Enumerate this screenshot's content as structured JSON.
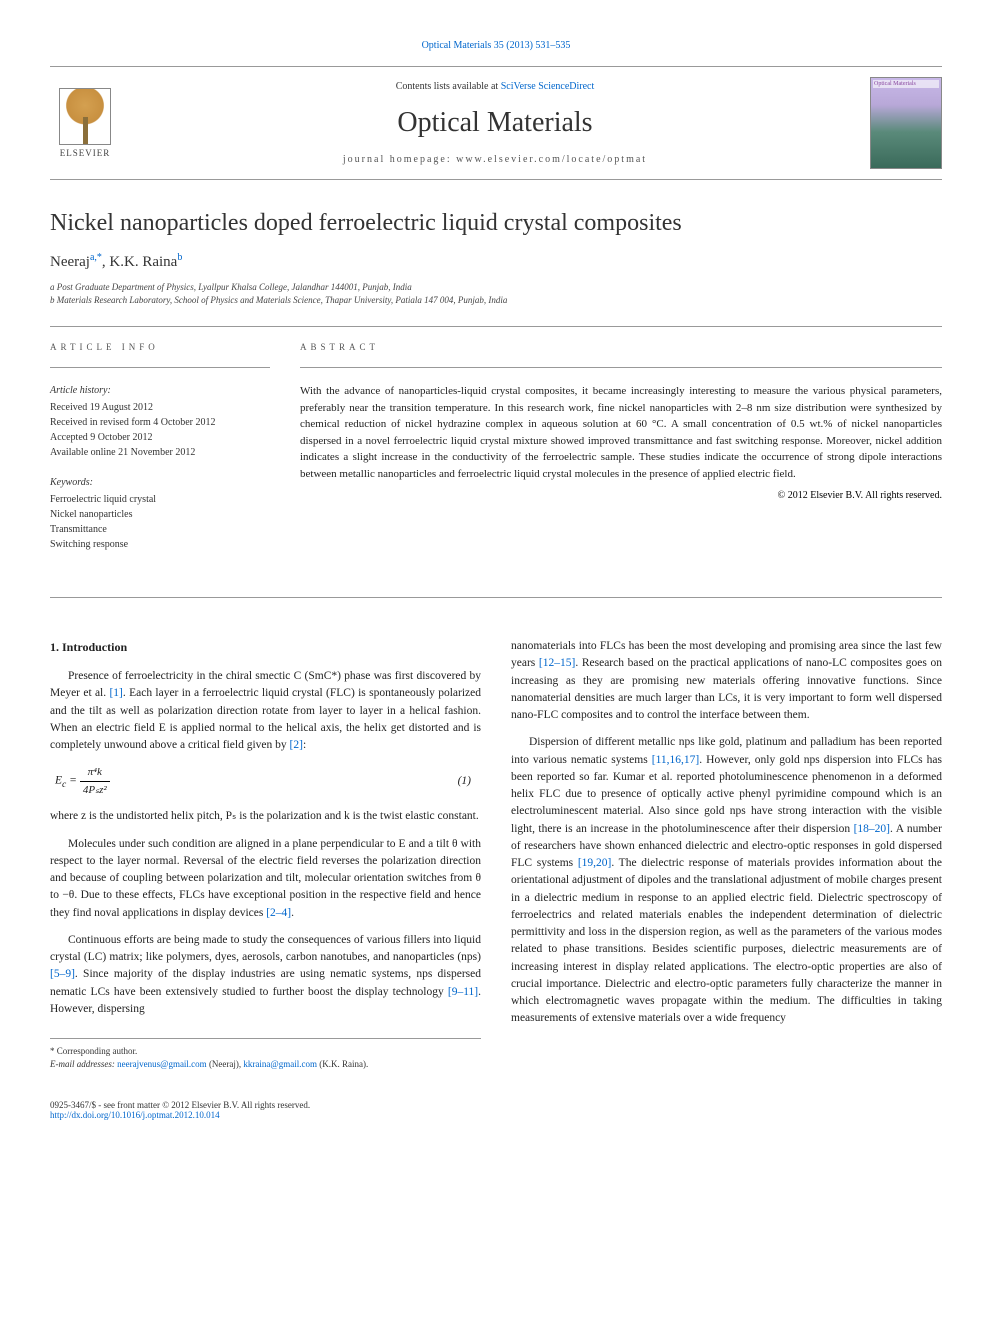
{
  "header": {
    "citation": "Optical Materials 35 (2013) 531–535",
    "contents_prefix": "Contents lists available at ",
    "contents_link": "SciVerse ScienceDirect",
    "journal_title": "Optical Materials",
    "homepage_label": "journal homepage: www.elsevier.com/locate/optmat",
    "publisher": "ELSEVIER",
    "cover_text": "Optical Materials"
  },
  "article": {
    "title": "Nickel nanoparticles doped ferroelectric liquid crystal composites",
    "authors_html": "Neeraj <sup>a,*</sup>, K.K. Raina <sup>b</sup>",
    "author1": "Neeraj",
    "author1_sup": "a,*",
    "author2": "K.K. Raina",
    "author2_sup": "b",
    "affil_a": "a Post Graduate Department of Physics, Lyallpur Khalsa College, Jalandhar 144001, Punjab, India",
    "affil_b": "b Materials Research Laboratory, School of Physics and Materials Science, Thapar University, Patiala 147 004, Punjab, India"
  },
  "meta": {
    "info_label": "ARTICLE INFO",
    "abstract_label": "ABSTRACT",
    "history_title": "Article history:",
    "received": "Received 19 August 2012",
    "revised": "Received in revised form 4 October 2012",
    "accepted": "Accepted 9 October 2012",
    "online": "Available online 21 November 2012",
    "keywords_title": "Keywords:",
    "kw1": "Ferroelectric liquid crystal",
    "kw2": "Nickel nanoparticles",
    "kw3": "Transmittance",
    "kw4": "Switching response"
  },
  "abstract": {
    "text": "With the advance of nanoparticles-liquid crystal composites, it became increasingly interesting to measure the various physical parameters, preferably near the transition temperature. In this research work, fine nickel nanoparticles with 2–8 nm size distribution were synthesized by chemical reduction of nickel hydrazine complex in aqueous solution at 60 °C. A small concentration of 0.5 wt.% of nickel nanoparticles dispersed in a novel ferroelectric liquid crystal mixture showed improved transmittance and fast switching response. Moreover, nickel addition indicates a slight increase in the conductivity of the ferroelectric sample. These studies indicate the occurrence of strong dipole interactions between metallic nanoparticles and ferroelectric liquid crystal molecules in the presence of applied electric field.",
    "copyright": "© 2012 Elsevier B.V. All rights reserved."
  },
  "body": {
    "intro_heading": "1. Introduction",
    "p1a": "Presence of ferroelectricity in the chiral smectic C (SmC*) phase was first discovered by Meyer et al. ",
    "p1_ref1": "[1]",
    "p1b": ". Each layer in a ferroelectric liquid crystal (FLC) is spontaneously polarized and the tilt as well as polarization direction rotate from layer to layer in a helical fashion. When an electric field E is applied normal to the helical axis, the helix get distorted and is completely unwound above a critical field given by ",
    "p1_ref2": "[2]",
    "p1c": ":",
    "eq1_lhs": "E",
    "eq1_sub": "c",
    "eq1_num": "π⁴k",
    "eq1_den": "4Pₛz²",
    "eq1_label": "(1)",
    "p2": "where z is the undistorted helix pitch, Pₛ is the polarization and k is the twist elastic constant.",
    "p3a": "Molecules under such condition are aligned in a plane perpendicular to E and a tilt θ with respect to the layer normal. Reversal of the electric field reverses the polarization direction and because of coupling between polarization and tilt, molecular orientation switches from θ to −θ. Due to these effects, FLCs have exceptional position in the respective field and hence they find noval applications in display devices ",
    "p3_ref": "[2–4]",
    "p3b": ".",
    "p4a": "Continuous efforts are being made to study the consequences of various fillers into liquid crystal (LC) matrix; like polymers, dyes, aerosols, carbon nanotubes, and nanoparticles (nps) ",
    "p4_ref1": "[5–9]",
    "p4b": ". Since majority of the display industries are using nematic systems, nps dispersed nematic LCs have been extensively studied to further boost the display technology ",
    "p4_ref2": "[9–11]",
    "p4c": ". However, dispersing",
    "p5a": "nanomaterials into FLCs has been the most developing and promising area since the last few years ",
    "p5_ref": "[12–15]",
    "p5b": ". Research based on the practical applications of nano-LC composites goes on increasing as they are promising new materials offering innovative functions. Since nanomaterial densities are much larger than LCs, it is very important to form well dispersed nano-FLC composites and to control the interface between them.",
    "p6a": "Dispersion of different metallic nps like gold, platinum and palladium has been reported into various nematic systems ",
    "p6_ref1": "[11,16,17]",
    "p6b": ". However, only gold nps dispersion into FLCs has been reported so far. Kumar et al. reported photoluminescence phenomenon in a deformed helix FLC due to presence of optically active phenyl pyrimidine compound which is an electroluminescent material. Also since gold nps have strong interaction with the visible light, there is an increase in the photoluminescence after their dispersion ",
    "p6_ref2": "[18–20]",
    "p6c": ". A number of researchers have shown enhanced dielectric and electro-optic responses in gold dispersed FLC systems ",
    "p6_ref3": "[19,20]",
    "p6d": ". The dielectric response of materials provides information about the orientational adjustment of dipoles and the translational adjustment of mobile charges present in a dielectric medium in response to an applied electric field. Dielectric spectroscopy of ferroelectrics and related materials enables the independent determination of dielectric permittivity and loss in the dispersion region, as well as the parameters of the various modes related to phase transitions. Besides scientific purposes, dielectric measurements are of increasing interest in display related applications. The electro-optic properties are also of crucial importance. Dielectric and electro-optic parameters fully characterize the manner in which electromagnetic waves propagate within the medium. The difficulties in taking measurements of extensive materials over a wide frequency"
  },
  "footnotes": {
    "corr": "* Corresponding author.",
    "email_label": "E-mail addresses: ",
    "email1": "neerajvenus@gmail.com",
    "email1_who": " (Neeraj), ",
    "email2": "kkraina@gmail.com",
    "email2_who": " (K.K. Raina)."
  },
  "footer": {
    "issn": "0925-3467/$ - see front matter © 2012 Elsevier B.V. All rights reserved.",
    "doi": "http://dx.doi.org/10.1016/j.optmat.2012.10.014"
  },
  "colors": {
    "link": "#0066cc",
    "text": "#222222",
    "rule": "#999999"
  }
}
